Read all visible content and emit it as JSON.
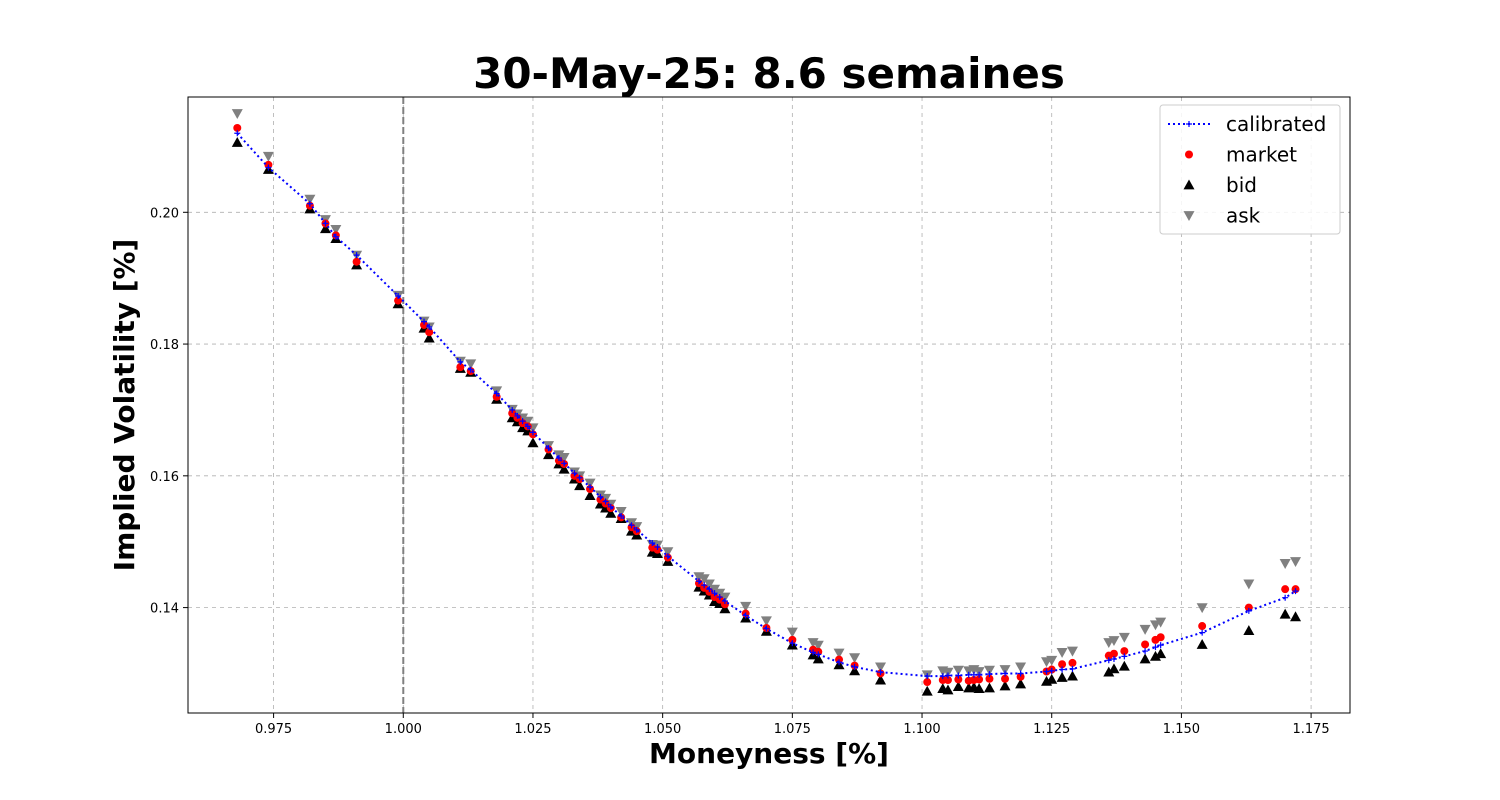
{
  "chart_data": {
    "type": "scatter",
    "title": "30-May-25: 8.6 semaines",
    "xlabel": "Moneyness [%]",
    "ylabel": "Implied Volatility [%]",
    "xlim": [
      0.9585,
      1.1825
    ],
    "ylim": [
      0.124,
      0.2175
    ],
    "xticks": [
      0.975,
      1.0,
      1.025,
      1.05,
      1.075,
      1.1,
      1.125,
      1.15,
      1.175
    ],
    "xtick_labels": [
      "0.975",
      "1.000",
      "1.025",
      "1.050",
      "1.075",
      "1.100",
      "1.125",
      "1.150",
      "1.175"
    ],
    "yticks": [
      0.14,
      0.16,
      0.18,
      0.2
    ],
    "ytick_labels": [
      "0.14",
      "0.16",
      "0.18",
      "0.20"
    ],
    "grid": true,
    "legend_position": "top-right",
    "reference_line": {
      "x": 1.0,
      "style": "dashed",
      "color": "#808080"
    },
    "x": [
      0.968,
      0.974,
      0.982,
      0.985,
      0.987,
      0.991,
      0.999,
      1.004,
      1.005,
      1.011,
      1.013,
      1.018,
      1.021,
      1.022,
      1.023,
      1.024,
      1.025,
      1.028,
      1.03,
      1.031,
      1.033,
      1.034,
      1.036,
      1.038,
      1.039,
      1.04,
      1.042,
      1.044,
      1.045,
      1.048,
      1.049,
      1.051,
      1.057,
      1.058,
      1.059,
      1.06,
      1.061,
      1.062,
      1.066,
      1.07,
      1.075,
      1.079,
      1.08,
      1.084,
      1.087,
      1.092,
      1.101,
      1.104,
      1.105,
      1.107,
      1.109,
      1.11,
      1.111,
      1.113,
      1.116,
      1.119,
      1.124,
      1.125,
      1.127,
      1.129,
      1.136,
      1.137,
      1.139,
      1.143,
      1.145,
      1.146,
      1.154,
      1.163,
      1.17,
      1.172
    ],
    "series": [
      {
        "name": "calibrated",
        "style": "dotted-line-plus",
        "color": "#0000ff",
        "values": [
          0.212,
          0.2068,
          0.2013,
          0.1983,
          0.1963,
          0.1935,
          0.1873,
          0.1834,
          0.1826,
          0.1773,
          0.1761,
          0.1725,
          0.17,
          0.1691,
          0.1683,
          0.1675,
          0.1666,
          0.1642,
          0.1627,
          0.1619,
          0.1604,
          0.1597,
          0.1583,
          0.1568,
          0.1561,
          0.1553,
          0.1539,
          0.1525,
          0.1518,
          0.1498,
          0.1492,
          0.1478,
          0.144,
          0.1434,
          0.1428,
          0.1422,
          0.1416,
          0.141,
          0.1388,
          0.1368,
          0.1346,
          0.1332,
          0.1329,
          0.1317,
          0.131,
          0.1302,
          0.1296,
          0.1296,
          0.1297,
          0.1297,
          0.1298,
          0.1298,
          0.1298,
          0.1299,
          0.13,
          0.13,
          0.1303,
          0.1304,
          0.1306,
          0.1307,
          0.132,
          0.1322,
          0.1326,
          0.1334,
          0.134,
          0.1343,
          0.1362,
          0.1395,
          0.1415,
          0.1425
        ]
      },
      {
        "name": "market",
        "style": "circle",
        "color": "#ff0000",
        "values": [
          0.2128,
          0.2072,
          0.201,
          0.1983,
          0.1965,
          0.1925,
          0.1866,
          0.1829,
          0.1818,
          0.1765,
          0.1759,
          0.172,
          0.1695,
          0.1688,
          0.168,
          0.1675,
          0.1663,
          0.164,
          0.1623,
          0.1618,
          0.16,
          0.1595,
          0.158,
          0.1564,
          0.1558,
          0.1551,
          0.1537,
          0.1522,
          0.1516,
          0.1491,
          0.1488,
          0.1476,
          0.1437,
          0.143,
          0.1424,
          0.1416,
          0.1412,
          0.1405,
          0.1391,
          0.1369,
          0.1351,
          0.1336,
          0.1333,
          0.1321,
          0.1312,
          0.13,
          0.1287,
          0.129,
          0.129,
          0.1291,
          0.1289,
          0.129,
          0.1291,
          0.1292,
          0.1292,
          0.1295,
          0.1303,
          0.1306,
          0.1314,
          0.1316,
          0.1327,
          0.133,
          0.1334,
          0.1344,
          0.1351,
          0.1355,
          0.1372,
          0.14,
          0.1428,
          0.1428
        ]
      },
      {
        "name": "bid",
        "style": "triangle-up",
        "color": "#000000",
        "values": [
          0.2106,
          0.2065,
          0.2005,
          0.1975,
          0.196,
          0.192,
          0.1861,
          0.1824,
          0.1809,
          0.1763,
          0.1757,
          0.1716,
          0.1688,
          0.1682,
          0.1673,
          0.1668,
          0.165,
          0.1632,
          0.1618,
          0.161,
          0.1595,
          0.1585,
          0.157,
          0.1557,
          0.1551,
          0.1543,
          0.1535,
          0.1516,
          0.151,
          0.1484,
          0.1482,
          0.147,
          0.1431,
          0.1425,
          0.1419,
          0.1409,
          0.1406,
          0.1398,
          0.1384,
          0.1364,
          0.1343,
          0.1328,
          0.1322,
          0.1313,
          0.1304,
          0.129,
          0.1273,
          0.1277,
          0.1275,
          0.128,
          0.1278,
          0.1279,
          0.1277,
          0.1278,
          0.1281,
          0.1284,
          0.1288,
          0.1291,
          0.1294,
          0.1296,
          0.1302,
          0.1307,
          0.1311,
          0.1322,
          0.1326,
          0.133,
          0.1344,
          0.1365,
          0.139,
          0.1386
        ]
      },
      {
        "name": "ask",
        "style": "triangle-down",
        "color": "#808080",
        "values": [
          0.215,
          0.2085,
          0.202,
          0.1989,
          0.1974,
          0.1935,
          0.1874,
          0.1835,
          0.1826,
          0.1774,
          0.177,
          0.1729,
          0.1701,
          0.1694,
          0.1688,
          0.1683,
          0.1673,
          0.1646,
          0.1632,
          0.1628,
          0.1606,
          0.16,
          0.1589,
          0.1571,
          0.1566,
          0.1557,
          0.1546,
          0.1529,
          0.1523,
          0.1496,
          0.1495,
          0.1485,
          0.1447,
          0.1444,
          0.1436,
          0.1428,
          0.1422,
          0.1416,
          0.1402,
          0.138,
          0.1363,
          0.1347,
          0.1343,
          0.1331,
          0.1324,
          0.131,
          0.1298,
          0.1304,
          0.1302,
          0.1305,
          0.1304,
          0.1306,
          0.1303,
          0.1305,
          0.1306,
          0.131,
          0.1318,
          0.132,
          0.1332,
          0.1334,
          0.1347,
          0.135,
          0.1355,
          0.1367,
          0.1374,
          0.1378,
          0.14,
          0.1436,
          0.1467,
          0.147
        ]
      }
    ]
  }
}
